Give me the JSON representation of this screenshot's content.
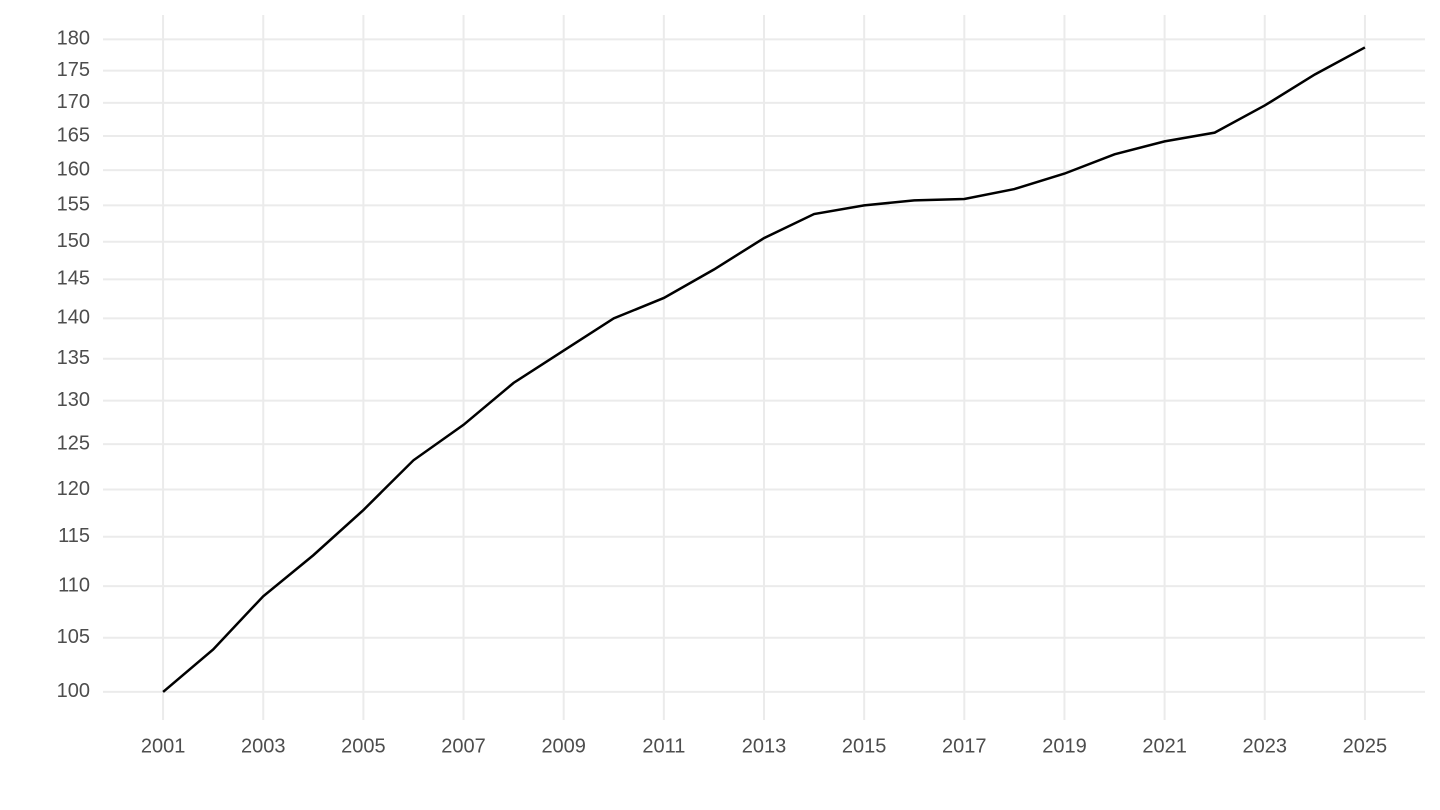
{
  "chart_data": {
    "type": "line",
    "log_y": true,
    "grid": true,
    "x": [
      2001,
      2002,
      2003,
      2004,
      2005,
      2006,
      2007,
      2008,
      2009,
      2010,
      2011,
      2012,
      2013,
      2014,
      2015,
      2016,
      2017,
      2018,
      2019,
      2020,
      2021,
      2022,
      2023,
      2024,
      2025
    ],
    "series": [
      {
        "color": "#000000",
        "values": [
          100,
          103.9,
          109.0,
          113.1,
          117.8,
          123.2,
          127.2,
          132.1,
          136.0,
          140.0,
          142.6,
          146.3,
          150.5,
          153.8,
          155.0,
          155.7,
          155.9,
          157.3,
          159.5,
          162.3,
          164.2,
          165.5,
          169.6,
          174.4,
          178.7
        ]
      }
    ],
    "xlim": [
      1999.8,
      2026.2
    ],
    "xticks": [
      2001,
      2003,
      2005,
      2007,
      2009,
      2011,
      2013,
      2015,
      2017,
      2019,
      2021,
      2023,
      2025
    ],
    "ylim": [
      97.5,
      184
    ],
    "yticks": [
      100,
      105,
      110,
      115,
      120,
      125,
      130,
      135,
      140,
      145,
      150,
      155,
      160,
      165,
      170,
      175,
      180
    ]
  }
}
